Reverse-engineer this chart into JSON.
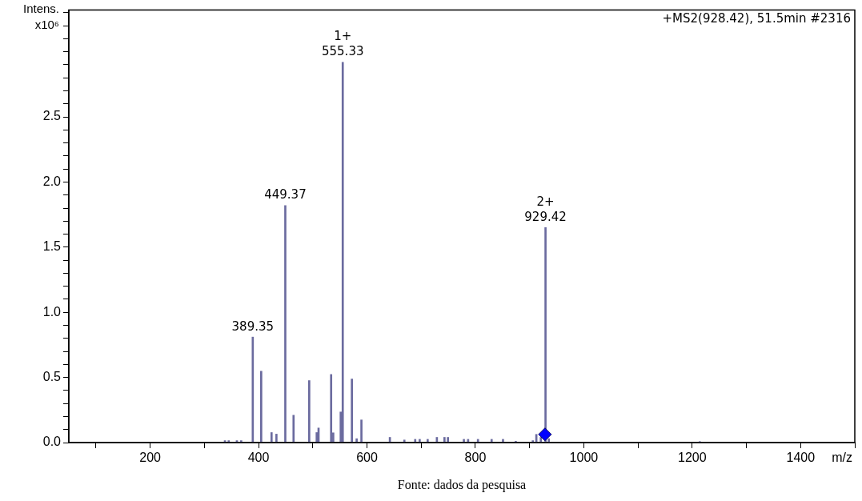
{
  "chart_data": {
    "type": "bar",
    "subtitle": "+MS2(928.42), 51.5min #2316",
    "xlabel": "m/z",
    "ylabel": "Intens.\nx10⁶",
    "xlim": [
      50,
      1500
    ],
    "xticks": [
      {
        "value": 100,
        "label": null
      },
      200,
      {
        "value": 300,
        "label": null
      },
      400,
      {
        "value": 500,
        "label": null
      },
      600,
      {
        "value": 700,
        "label": null
      },
      800,
      {
        "value": 900,
        "label": null
      },
      1000,
      {
        "value": 1100,
        "label": null
      },
      1200,
      {
        "value": 1300,
        "label": null
      },
      1400,
      {
        "value": 1500,
        "label": null
      }
    ],
    "ylim": [
      0,
      3.32
    ],
    "yticks": [
      {
        "value": 0,
        "label": "0.0"
      },
      {
        "value": 0.1,
        "label": null
      },
      {
        "value": 0.2,
        "label": null
      },
      {
        "value": 0.3,
        "label": null
      },
      {
        "value": 0.4,
        "label": null
      },
      0.5,
      {
        "value": 0.6,
        "label": null
      },
      {
        "value": 0.7,
        "label": null
      },
      {
        "value": 0.8,
        "label": null
      },
      {
        "value": 0.9,
        "label": null
      },
      {
        "value": 1,
        "label": "1.0"
      },
      {
        "value": 1.1,
        "label": null
      },
      {
        "value": 1.2,
        "label": null
      },
      {
        "value": 1.3,
        "label": null
      },
      {
        "value": 1.4,
        "label": null
      },
      1.5,
      {
        "value": 1.6,
        "label": null
      },
      {
        "value": 1.7,
        "label": null
      },
      {
        "value": 1.8,
        "label": null
      },
      {
        "value": 1.9,
        "label": null
      },
      {
        "value": 2,
        "label": "2.0"
      },
      {
        "value": 2.1,
        "label": null
      },
      {
        "value": 2.2,
        "label": null
      },
      {
        "value": 2.3,
        "label": null
      },
      {
        "value": 2.4,
        "label": null
      },
      2.5,
      {
        "value": 2.6,
        "label": null
      },
      {
        "value": 2.7,
        "label": null
      },
      {
        "value": 2.8,
        "label": null
      },
      {
        "value": 2.9,
        "label": null
      },
      {
        "value": 3,
        "label": null
      },
      {
        "value": 3.1,
        "label": null
      },
      {
        "value": 3.2,
        "label": null
      },
      {
        "value": 3.3,
        "label": null
      }
    ],
    "grid": false,
    "series": [
      {
        "color": "#6b6b9f",
        "x": [
          338,
          345,
          360,
          368,
          389.35,
          404.9,
          424,
          433,
          449.37,
          464.6,
          493.5,
          507.3,
          510.7,
          533.9,
          537.8,
          551.6,
          555.33,
          569.7,
          572.2,
          581,
          589.8,
          642.3,
          669,
          689,
          697.3,
          712,
          729,
          743,
          749.4,
          778.8,
          786.6,
          804.8,
          830,
          851,
          874.5,
          906,
          912.5,
          920.8,
          929.42,
          935.5,
          1071.9,
          1214
        ],
        "values": [
          0.015,
          0.015,
          0.015,
          0.015,
          0.81,
          0.548,
          0.077,
          0.065,
          1.82,
          0.21,
          0.476,
          0.077,
          0.112,
          0.523,
          0.075,
          0.235,
          2.92,
          null,
          0.488,
          0.03,
          0.174,
          0.04,
          0.02,
          0.025,
          0.025,
          0.025,
          0.04,
          0.04,
          0.04,
          0.025,
          0.025,
          0.025,
          0.025,
          0.025,
          0.01,
          0.015,
          0.063,
          0.04,
          1.65,
          0.03,
          null,
          0.008
        ]
      },
      {
        "type": "scatter",
        "color": "#0000ff",
        "marker": "diamond",
        "x": [
          928.42
        ],
        "values": [
          0.063
        ]
      }
    ],
    "annotations": [
      {
        "text": "389.35",
        "x": 389.35,
        "y": 0.81
      },
      {
        "text": "449.37",
        "x": 449.37,
        "y": 1.82
      },
      {
        "text": "1+\n555.33",
        "x": 555.33,
        "y": 2.92
      },
      {
        "text": "2+\n929.42",
        "x": 929.42,
        "y": 1.65
      },
      "Fonte: dados da pesquisa"
    ]
  }
}
